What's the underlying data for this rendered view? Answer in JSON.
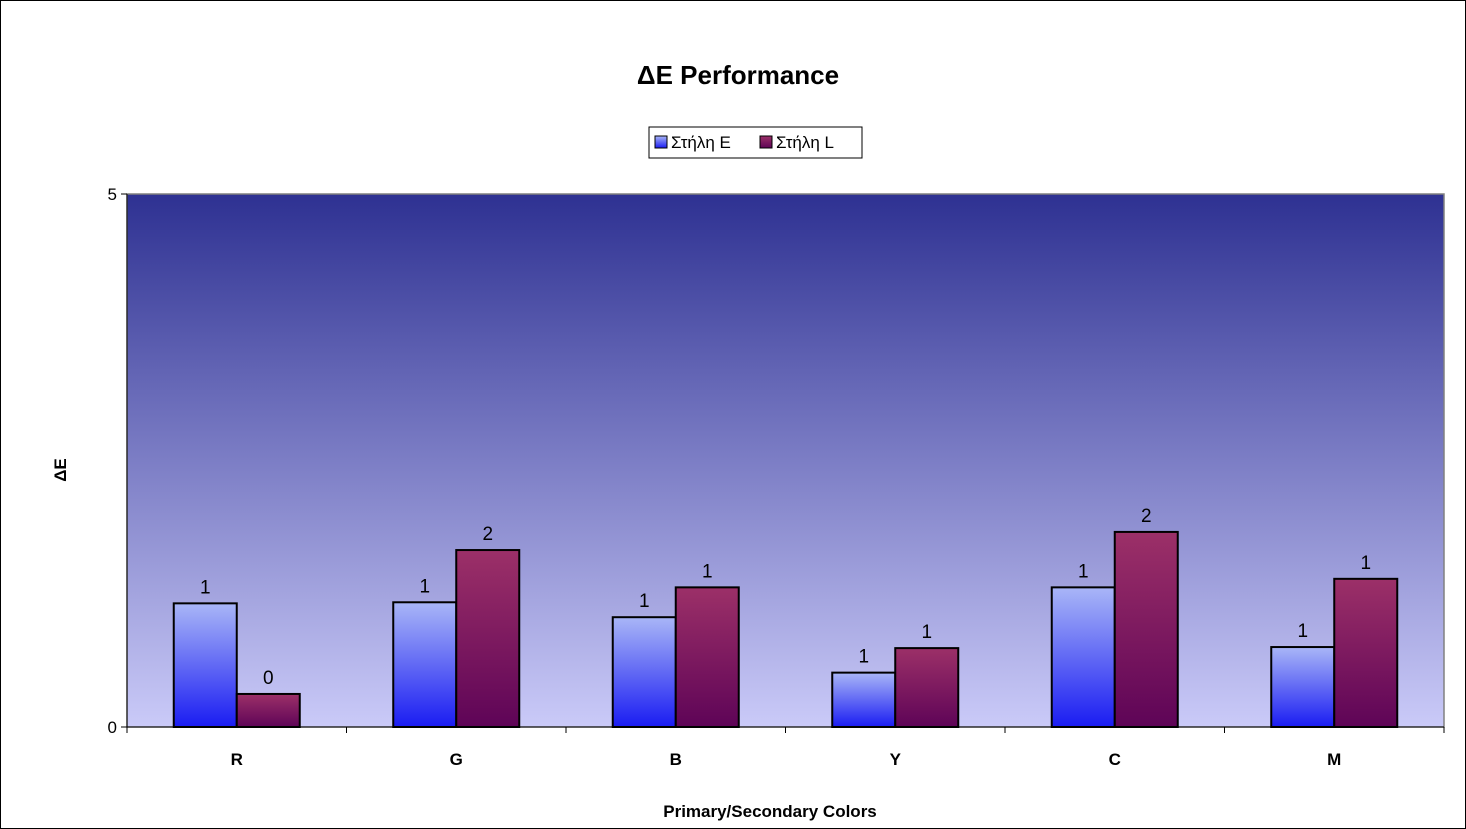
{
  "chart_data": {
    "type": "bar",
    "title": "ΔE Performance",
    "xlabel": "Primary/Secondary Colors",
    "ylabel": "ΔE",
    "ylim": [
      0,
      5
    ],
    "yticks": [
      0,
      5
    ],
    "categories": [
      "R",
      "G",
      "B",
      "Y",
      "C",
      "M"
    ],
    "series": [
      {
        "name": "Στήλη E",
        "values": [
          1.16,
          1.17,
          1.03,
          0.51,
          1.31,
          0.75
        ],
        "data_labels": [
          "1",
          "1",
          "1",
          "1",
          "1",
          "1"
        ],
        "color": "#4a55e8"
      },
      {
        "name": "Στήλη L",
        "values": [
          0.31,
          1.66,
          1.31,
          0.74,
          1.83,
          1.39
        ],
        "data_labels": [
          "0",
          "2",
          "1",
          "1",
          "2",
          "1"
        ],
        "color": "#8a2060"
      }
    ],
    "grid": false,
    "legend_position": "top-center",
    "plot_background": [
      "#2e3192",
      "#c8c8f8"
    ]
  }
}
